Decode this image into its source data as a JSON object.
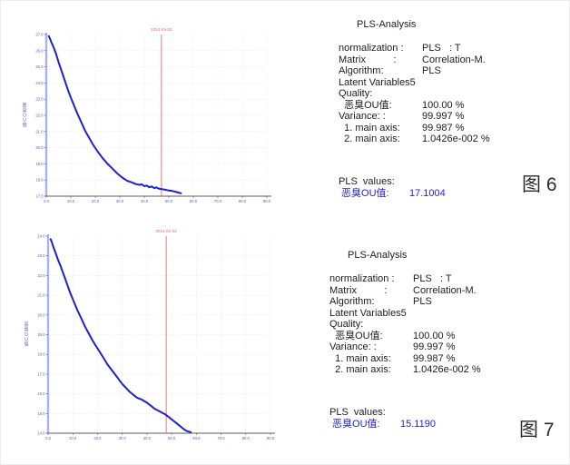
{
  "colors": {
    "curve": "#1f1fd2",
    "axis_y": "#a9b2ec",
    "axis_x": "#5c5c5c",
    "tick_label": "#5558cf",
    "grid": "#e3e3e3",
    "marker": "#e06868",
    "result_text": "#2222dd",
    "body_text": "#1c1c1c"
  },
  "panels": [
    {
      "figure_label": "图 6",
      "analysis": {
        "title": "PLS-Analysis",
        "rows": [
          {
            "label": "normalization :",
            "value": "PLS   : T"
          },
          {
            "label": "Matrix          :",
            "value": "Correlation-M."
          },
          {
            "label": "Algorithm:",
            "value": "PLS"
          },
          {
            "label": "Latent Variables5",
            "value": ""
          },
          {
            "label": "Quality:",
            "value": ""
          },
          {
            "label": "  恶臭OU值:",
            "value": "100.00 %"
          },
          {
            "label": "Variance: :",
            "value": "99.997 %"
          },
          {
            "label": "  1. main axis:",
            "value": "99.987 %"
          },
          {
            "label": "  2. main axis:",
            "value": "1.0426e-002 %"
          }
        ],
        "values_title": "PLS  values:",
        "result_label": " 恶臭OU值:",
        "result_value": "17.1004"
      }
    },
    {
      "figure_label": "图 7",
      "analysis": {
        "title": "PLS-Analysis",
        "rows": [
          {
            "label": "normalization :",
            "value": "PLS   : T"
          },
          {
            "label": "Matrix          :",
            "value": "Correlation-M."
          },
          {
            "label": "Algorithm:",
            "value": "PLS"
          },
          {
            "label": "Latent Variables5",
            "value": ""
          },
          {
            "label": "Quality:",
            "value": ""
          },
          {
            "label": "  恶臭OU值:",
            "value": "100.00 %"
          },
          {
            "label": "Variance: :",
            "value": "99.997 %"
          },
          {
            "label": "  1. main axis:",
            "value": "99.987 %"
          },
          {
            "label": "  2. main axis:",
            "value": "1.0426e-002 %"
          }
        ],
        "values_title": "PLS  values:",
        "result_label": " 恶臭OU值:",
        "result_value": "15.1190"
      }
    }
  ],
  "chart_data": [
    {
      "type": "line",
      "title": "",
      "xlabel": "",
      "ylabel": "恶臭OU值",
      "xlim": [
        0,
        90
      ],
      "ylim": [
        17,
        27
      ],
      "grid": true,
      "legend": "none",
      "xticks": [
        0,
        10,
        20,
        30,
        40,
        50,
        60,
        70,
        80,
        90
      ],
      "xtick_labels": [
        "0.0",
        "10.0",
        "20.0",
        "30.0",
        "40.0",
        "50.0",
        "60.0",
        "70.0",
        "80.0",
        "90.0"
      ],
      "yticks": [
        27,
        26,
        25,
        24,
        23,
        22,
        21,
        20,
        19,
        18,
        17
      ],
      "ytick_labels": [
        "27.0",
        "26.0",
        "25.0",
        "24.0",
        "23.0",
        "22.0",
        "21.0",
        "20.0",
        "19.0",
        "18.0",
        "17.0"
      ],
      "marker": {
        "x": 47,
        "label": "2014-04-02",
        "value": 17.1004
      },
      "series": [
        {
          "name": "恶臭OU值",
          "points": [
            [
              1,
              26.9
            ],
            [
              1.5,
              26.75
            ],
            [
              2,
              26.55
            ],
            [
              3,
              26.2
            ],
            [
              4,
              25.8
            ],
            [
              5,
              25.3
            ],
            [
              6,
              24.85
            ],
            [
              7,
              24.4
            ],
            [
              8,
              23.95
            ],
            [
              9,
              23.5
            ],
            [
              10,
              23.1
            ],
            [
              11.5,
              22.55
            ],
            [
              13,
              22.0
            ],
            [
              14.5,
              21.5
            ],
            [
              16,
              21.0
            ],
            [
              17.5,
              20.6
            ],
            [
              19,
              20.2
            ],
            [
              21,
              19.75
            ],
            [
              23,
              19.35
            ],
            [
              25,
              19.0
            ],
            [
              27,
              18.7
            ],
            [
              29,
              18.4
            ],
            [
              31,
              18.15
            ],
            [
              33,
              17.95
            ],
            [
              35,
              17.85
            ],
            [
              36.5,
              17.75
            ],
            [
              38,
              17.7
            ],
            [
              39,
              17.73
            ],
            [
              40,
              17.62
            ],
            [
              41,
              17.66
            ],
            [
              42,
              17.55
            ],
            [
              43,
              17.6
            ],
            [
              44,
              17.5
            ],
            [
              45,
              17.54
            ],
            [
              46,
              17.46
            ],
            [
              47,
              17.44
            ],
            [
              48.5,
              17.4
            ],
            [
              50,
              17.35
            ],
            [
              51.5,
              17.32
            ],
            [
              53,
              17.26
            ],
            [
              54,
              17.22
            ],
            [
              55,
              17.18
            ]
          ]
        }
      ]
    },
    {
      "type": "line",
      "title": "",
      "xlabel": "",
      "ylabel": "恶臭OU值",
      "xlim": [
        0,
        90
      ],
      "ylim": [
        14,
        24
      ],
      "grid": true,
      "legend": "none",
      "xticks": [
        0,
        10,
        20,
        30,
        40,
        50,
        60,
        70,
        80,
        90
      ],
      "xtick_labels": [
        "0.0",
        "10.0",
        "20.0",
        "30.0",
        "40.0",
        "50.0",
        "60.0",
        "70.0",
        "80.0",
        "90.0"
      ],
      "yticks": [
        24,
        23,
        22,
        21,
        20,
        19,
        18,
        17,
        16,
        15,
        14
      ],
      "ytick_labels": [
        "24.0",
        "23.0",
        "22.0",
        "21.0",
        "20.0",
        "19.0",
        "18.0",
        "17.0",
        "16.0",
        "15.0",
        "14.0"
      ],
      "marker": {
        "x": 47.8,
        "label": "2014-04-02",
        "value": 15.119
      },
      "series": [
        {
          "name": "恶臭OU值",
          "points": [
            [
              1,
              23.85
            ],
            [
              1.5,
              23.7
            ],
            [
              2,
              23.5
            ],
            [
              3,
              23.15
            ],
            [
              4,
              22.8
            ],
            [
              5,
              22.5
            ],
            [
              6,
              22.15
            ],
            [
              7,
              21.8
            ],
            [
              8,
              21.45
            ],
            [
              9,
              21.1
            ],
            [
              10,
              20.8
            ],
            [
              11,
              20.5
            ],
            [
              12,
              20.2
            ],
            [
              13.5,
              19.8
            ],
            [
              15,
              19.4
            ],
            [
              16.5,
              19.05
            ],
            [
              18,
              18.7
            ],
            [
              19.5,
              18.4
            ],
            [
              21,
              18.1
            ],
            [
              22.5,
              17.8
            ],
            [
              24,
              17.5
            ],
            [
              25.5,
              17.25
            ],
            [
              27,
              17.0
            ],
            [
              28.5,
              16.75
            ],
            [
              30,
              16.5
            ],
            [
              31.5,
              16.3
            ],
            [
              33,
              16.1
            ],
            [
              34.5,
              15.95
            ],
            [
              36,
              15.8
            ],
            [
              38,
              15.7
            ],
            [
              40,
              15.55
            ],
            [
              41.5,
              15.4
            ],
            [
              43,
              15.25
            ],
            [
              44.5,
              15.15
            ],
            [
              46,
              15.05
            ],
            [
              47.5,
              14.95
            ],
            [
              49,
              14.8
            ],
            [
              50.5,
              14.65
            ],
            [
              52,
              14.5
            ],
            [
              53,
              14.4
            ],
            [
              54,
              14.3
            ],
            [
              55,
              14.2
            ],
            [
              56,
              14.12
            ],
            [
              57,
              14.08
            ],
            [
              57.8,
              14.05
            ]
          ]
        }
      ]
    }
  ]
}
